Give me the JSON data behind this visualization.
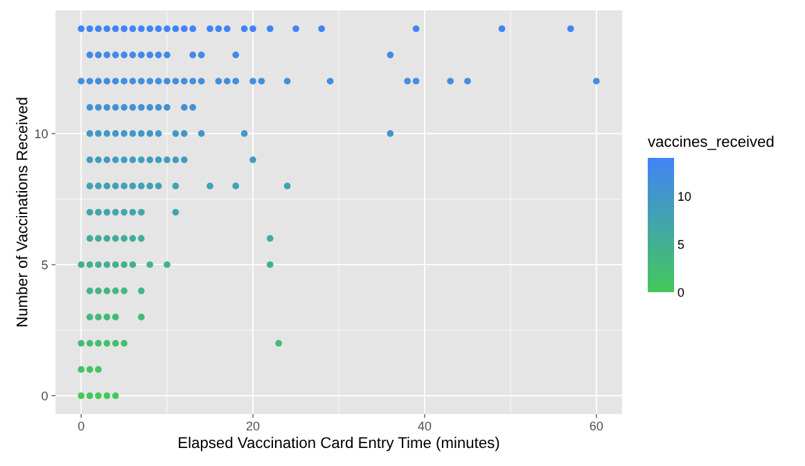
{
  "chart_data": {
    "type": "scatter",
    "xlabel": "Elapsed Vaccination Card Entry Time (minutes)",
    "ylabel": "Number of Vaccinations Received",
    "clabel": "vaccines_received",
    "xlim": [
      -3,
      63
    ],
    "ylim": [
      -0.7,
      14.7
    ],
    "xticks": [
      0,
      20,
      40,
      60
    ],
    "yticks": [
      0,
      5,
      10
    ],
    "clim": [
      0,
      14
    ],
    "cticks": [
      0,
      5,
      10
    ],
    "grid": true,
    "marker": "circle",
    "x": [
      0,
      1,
      2,
      3,
      4,
      0,
      1,
      2,
      0,
      1,
      2,
      3,
      4,
      5,
      23,
      1,
      2,
      3,
      4,
      7,
      1,
      2,
      3,
      4,
      5,
      7,
      0,
      1,
      2,
      3,
      4,
      5,
      6,
      8,
      10,
      22,
      1,
      2,
      3,
      4,
      5,
      6,
      7,
      22,
      1,
      2,
      3,
      4,
      5,
      6,
      7,
      11,
      1,
      2,
      3,
      4,
      5,
      6,
      7,
      8,
      9,
      11,
      15,
      18,
      24,
      1,
      2,
      3,
      4,
      5,
      6,
      7,
      8,
      9,
      10,
      11,
      12,
      20,
      1,
      2,
      3,
      4,
      5,
      6,
      7,
      8,
      9,
      11,
      12,
      14,
      19,
      36,
      1,
      2,
      3,
      4,
      5,
      6,
      7,
      8,
      9,
      10,
      12,
      13,
      0,
      1,
      2,
      3,
      4,
      5,
      6,
      7,
      8,
      9,
      10,
      11,
      12,
      13,
      14,
      16,
      17,
      18,
      20,
      21,
      24,
      29,
      38,
      39,
      43,
      45,
      60,
      1,
      2,
      3,
      4,
      5,
      6,
      7,
      8,
      9,
      10,
      13,
      14,
      18,
      36,
      0,
      1,
      2,
      3,
      4,
      5,
      6,
      7,
      8,
      9,
      10,
      11,
      12,
      13,
      15,
      16,
      17,
      19,
      20,
      22,
      25,
      28,
      39,
      49,
      57
    ],
    "values": [
      0,
      0,
      0,
      0,
      0,
      1,
      1,
      1,
      2,
      2,
      2,
      2,
      2,
      2,
      2,
      3,
      3,
      3,
      3,
      3,
      4,
      4,
      4,
      4,
      4,
      4,
      5,
      5,
      5,
      5,
      5,
      5,
      5,
      5,
      5,
      5,
      6,
      6,
      6,
      6,
      6,
      6,
      6,
      6,
      7,
      7,
      7,
      7,
      7,
      7,
      7,
      7,
      8,
      8,
      8,
      8,
      8,
      8,
      8,
      8,
      8,
      8,
      8,
      8,
      8,
      9,
      9,
      9,
      9,
      9,
      9,
      9,
      9,
      9,
      9,
      9,
      9,
      9,
      10,
      10,
      10,
      10,
      10,
      10,
      10,
      10,
      10,
      10,
      10,
      10,
      10,
      10,
      11,
      11,
      11,
      11,
      11,
      11,
      11,
      11,
      11,
      11,
      11,
      11,
      12,
      12,
      12,
      12,
      12,
      12,
      12,
      12,
      12,
      12,
      12,
      12,
      12,
      12,
      12,
      12,
      12,
      12,
      12,
      12,
      12,
      12,
      12,
      12,
      12,
      12,
      12,
      13,
      13,
      13,
      13,
      13,
      13,
      13,
      13,
      13,
      13,
      13,
      13,
      13,
      13,
      14,
      14,
      14,
      14,
      14,
      14,
      14,
      14,
      14,
      14,
      14,
      14,
      14,
      14,
      14,
      14,
      14,
      14,
      14,
      14,
      14,
      14,
      14,
      14,
      14
    ],
    "cvalues": [
      0,
      0,
      0,
      0,
      0,
      1,
      1,
      1,
      2,
      2,
      2,
      2,
      2,
      2,
      2,
      3,
      3,
      3,
      3,
      3,
      4,
      4,
      4,
      4,
      4,
      4,
      5,
      5,
      5,
      5,
      5,
      5,
      5,
      5,
      5,
      5,
      6,
      6,
      6,
      6,
      6,
      6,
      6,
      6,
      7,
      7,
      7,
      7,
      7,
      7,
      7,
      7,
      8,
      8,
      8,
      8,
      8,
      8,
      8,
      8,
      8,
      8,
      8,
      8,
      8,
      9,
      9,
      9,
      9,
      9,
      9,
      9,
      9,
      9,
      9,
      9,
      9,
      9,
      10,
      10,
      10,
      10,
      10,
      10,
      10,
      10,
      10,
      10,
      10,
      10,
      10,
      10,
      11,
      11,
      11,
      11,
      11,
      11,
      11,
      11,
      11,
      11,
      11,
      11,
      12,
      12,
      12,
      12,
      12,
      12,
      12,
      12,
      12,
      12,
      12,
      12,
      12,
      12,
      12,
      12,
      12,
      12,
      12,
      12,
      12,
      12,
      12,
      12,
      12,
      12,
      12,
      13,
      13,
      13,
      13,
      13,
      13,
      13,
      13,
      13,
      13,
      13,
      13,
      13,
      13,
      14,
      14,
      14,
      14,
      14,
      14,
      14,
      14,
      14,
      14,
      14,
      14,
      14,
      14,
      14,
      14,
      14,
      14,
      14,
      14,
      14,
      14,
      14,
      14,
      14
    ]
  }
}
